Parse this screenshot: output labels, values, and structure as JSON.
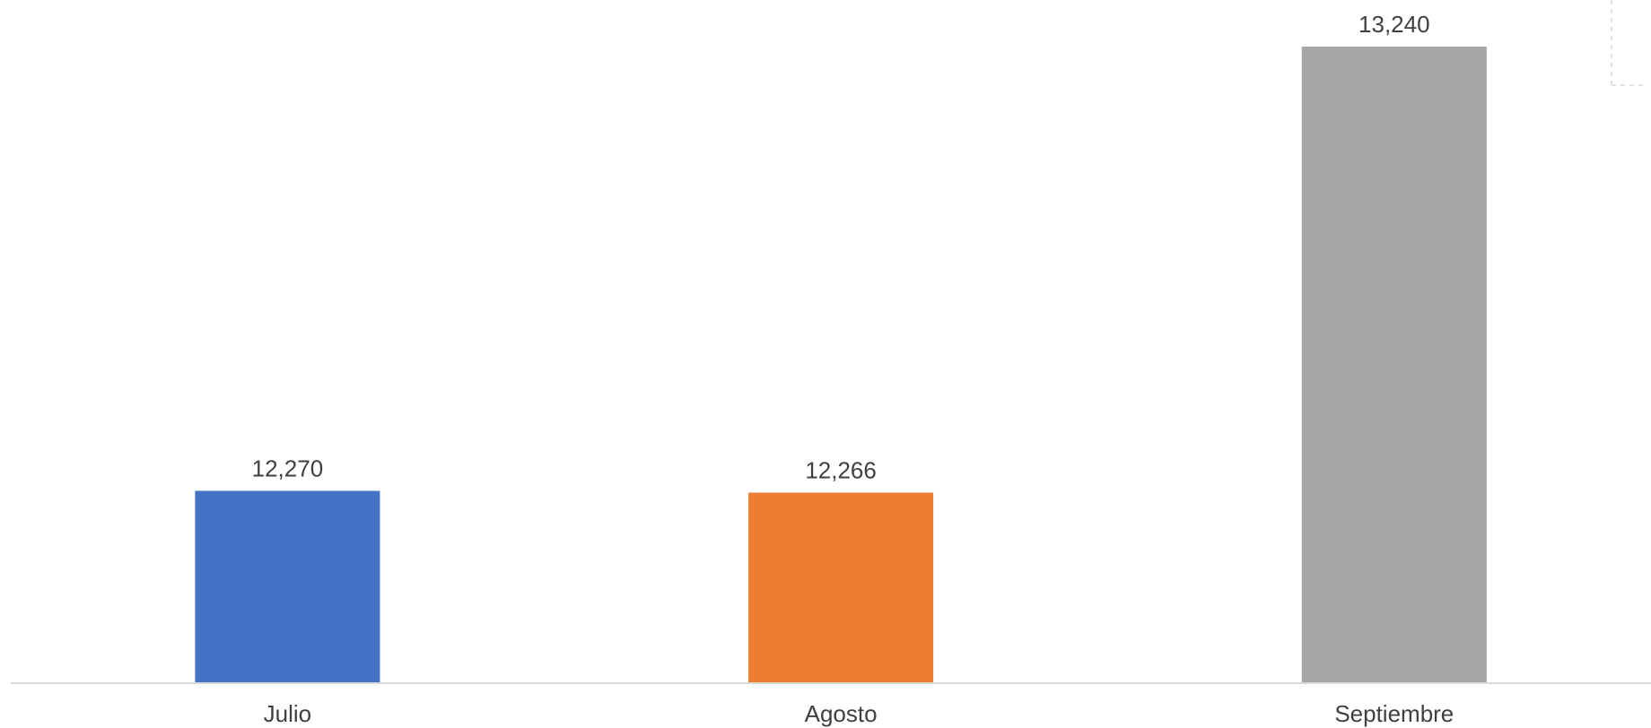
{
  "chart_data": {
    "type": "bar",
    "categories": [
      "Julio",
      "Agosto",
      "Septiembre"
    ],
    "values": [
      12270,
      12266,
      13240
    ],
    "data_labels": [
      "12,270",
      "12,266",
      "13,240"
    ],
    "colors": [
      "#4472C4",
      "#ED7D31",
      "#A5A5A5"
    ],
    "ylim": [
      11850,
      13240
    ],
    "grid": false,
    "legend": "none"
  },
  "colors": {
    "axis": "#D9D9D9",
    "label_text": "#404040"
  }
}
